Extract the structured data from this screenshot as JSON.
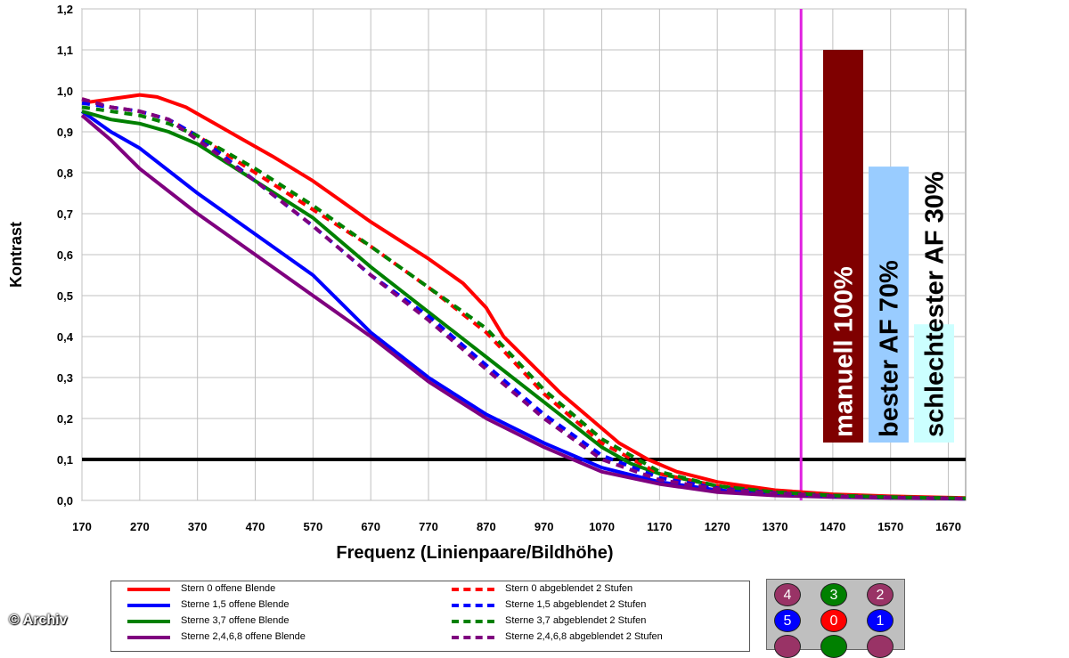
{
  "chart_data": {
    "type": "line",
    "title": "",
    "xlabel": "Frequenz (Linienpaare/Bildhöhe)",
    "ylabel": "Kontrast",
    "xlim": [
      170,
      1700
    ],
    "ylim": [
      0,
      1.2
    ],
    "x_ticks": [
      "170",
      "270",
      "370",
      "470",
      "570",
      "670",
      "770",
      "870",
      "970",
      "1070",
      "1170",
      "1270",
      "1370",
      "1470",
      "1570",
      "1670"
    ],
    "y_ticks": [
      "0,0",
      "0,1",
      "0,2",
      "0,3",
      "0,4",
      "0,5",
      "0,6",
      "0,7",
      "0,8",
      "0,9",
      "1,0",
      "1,1",
      "1,2"
    ],
    "grid": true,
    "threshold_y": 0.1,
    "marker_x": 1415,
    "series": [
      {
        "name": "Stern 0 offene Blende",
        "color": "#ff0000",
        "dashed": false,
        "x": [
          170,
          220,
          270,
          300,
          350,
          400,
          450,
          500,
          570,
          670,
          770,
          830,
          870,
          900,
          950,
          1000,
          1050,
          1100,
          1150,
          1200,
          1270,
          1370,
          1470,
          1570,
          1700
        ],
        "y": [
          0.97,
          0.98,
          0.99,
          0.985,
          0.96,
          0.92,
          0.88,
          0.84,
          0.78,
          0.68,
          0.59,
          0.53,
          0.47,
          0.4,
          0.33,
          0.26,
          0.2,
          0.14,
          0.1,
          0.07,
          0.045,
          0.025,
          0.015,
          0.01,
          0.006
        ]
      },
      {
        "name": "Sterne 1,5 offene Blende",
        "color": "#0000ff",
        "dashed": false,
        "x": [
          170,
          220,
          270,
          370,
          470,
          570,
          670,
          770,
          870,
          970,
          1070,
          1170,
          1270,
          1370,
          1470,
          1570,
          1700
        ],
        "y": [
          0.95,
          0.9,
          0.86,
          0.75,
          0.65,
          0.55,
          0.41,
          0.3,
          0.21,
          0.14,
          0.08,
          0.045,
          0.025,
          0.015,
          0.01,
          0.007,
          0.005
        ]
      },
      {
        "name": "Sterne 3,7 offene Blende",
        "color": "#008000",
        "dashed": false,
        "x": [
          170,
          220,
          270,
          320,
          370,
          470,
          570,
          670,
          770,
          870,
          970,
          1070,
          1120,
          1170,
          1270,
          1370,
          1470,
          1570,
          1700
        ],
        "y": [
          0.95,
          0.93,
          0.92,
          0.9,
          0.87,
          0.78,
          0.69,
          0.57,
          0.46,
          0.35,
          0.24,
          0.13,
          0.09,
          0.065,
          0.035,
          0.02,
          0.012,
          0.008,
          0.005
        ]
      },
      {
        "name": "Sterne 2,4,6,8 offene Blende",
        "color": "#7f007f",
        "dashed": false,
        "x": [
          170,
          220,
          270,
          370,
          470,
          570,
          670,
          770,
          870,
          970,
          1070,
          1170,
          1270,
          1370,
          1470,
          1570,
          1700
        ],
        "y": [
          0.94,
          0.88,
          0.81,
          0.7,
          0.6,
          0.5,
          0.4,
          0.29,
          0.2,
          0.13,
          0.07,
          0.04,
          0.02,
          0.012,
          0.008,
          0.006,
          0.004
        ]
      },
      {
        "name": "Stern 0 abgeblendet 2 Stufen",
        "color": "#ff0000",
        "dashed": true,
        "x": [
          170,
          220,
          270,
          320,
          370,
          470,
          570,
          670,
          770,
          870,
          970,
          1070,
          1170,
          1270,
          1370,
          1470,
          1570,
          1700
        ],
        "y": [
          0.98,
          0.96,
          0.95,
          0.93,
          0.89,
          0.8,
          0.71,
          0.62,
          0.52,
          0.41,
          0.26,
          0.14,
          0.065,
          0.035,
          0.02,
          0.012,
          0.008,
          0.005
        ]
      },
      {
        "name": "Sterne 1,5 abgeblendet 2 Stufen",
        "color": "#0000ff",
        "dashed": true,
        "x": [
          170,
          220,
          270,
          320,
          370,
          470,
          570,
          670,
          770,
          870,
          970,
          1070,
          1170,
          1270,
          1370,
          1470,
          1570,
          1700
        ],
        "y": [
          0.97,
          0.96,
          0.95,
          0.93,
          0.89,
          0.78,
          0.67,
          0.55,
          0.45,
          0.33,
          0.21,
          0.11,
          0.055,
          0.03,
          0.018,
          0.01,
          0.007,
          0.004
        ]
      },
      {
        "name": "Sterne 3,7 abgeblendet 2 Stufen",
        "color": "#008000",
        "dashed": true,
        "x": [
          170,
          220,
          270,
          320,
          370,
          470,
          570,
          670,
          770,
          870,
          970,
          1070,
          1170,
          1270,
          1370,
          1470,
          1570,
          1700
        ],
        "y": [
          0.96,
          0.95,
          0.94,
          0.92,
          0.89,
          0.81,
          0.72,
          0.62,
          0.52,
          0.42,
          0.27,
          0.15,
          0.07,
          0.035,
          0.02,
          0.012,
          0.008,
          0.005
        ]
      },
      {
        "name": "Sterne 2,4,6,8 abgeblendet 2 Stufen",
        "color": "#7f007f",
        "dashed": true,
        "x": [
          170,
          220,
          270,
          320,
          370,
          470,
          570,
          670,
          770,
          870,
          970,
          1070,
          1170,
          1270,
          1370,
          1470,
          1570,
          1700
        ],
        "y": [
          0.98,
          0.96,
          0.95,
          0.93,
          0.88,
          0.78,
          0.67,
          0.55,
          0.44,
          0.32,
          0.2,
          0.1,
          0.05,
          0.028,
          0.017,
          0.01,
          0.007,
          0.004
        ]
      }
    ],
    "bars": [
      {
        "label": "manuell 100%",
        "value": 1.1,
        "color": "#7f0000",
        "text_color": "#ffffff"
      },
      {
        "label": "bester AF 70%",
        "value": 0.815,
        "color": "#99ccff",
        "text_color": "#000000"
      },
      {
        "label": "schlechtester AF 30%",
        "value": 0.43,
        "color": "#ccffff",
        "text_color": "#000000"
      }
    ]
  },
  "stars": [
    {
      "label": "4",
      "color": "#993366"
    },
    {
      "label": "3",
      "color": "#008000"
    },
    {
      "label": "2",
      "color": "#993366"
    },
    {
      "label": "5",
      "color": "#0000ff"
    },
    {
      "label": "0",
      "color": "#ff0000"
    },
    {
      "label": "1",
      "color": "#0000ff"
    },
    {
      "label": "",
      "color": "#993366"
    },
    {
      "label": "",
      "color": "#008000"
    },
    {
      "label": "",
      "color": "#993366"
    }
  ],
  "copyright": "© Archiv"
}
